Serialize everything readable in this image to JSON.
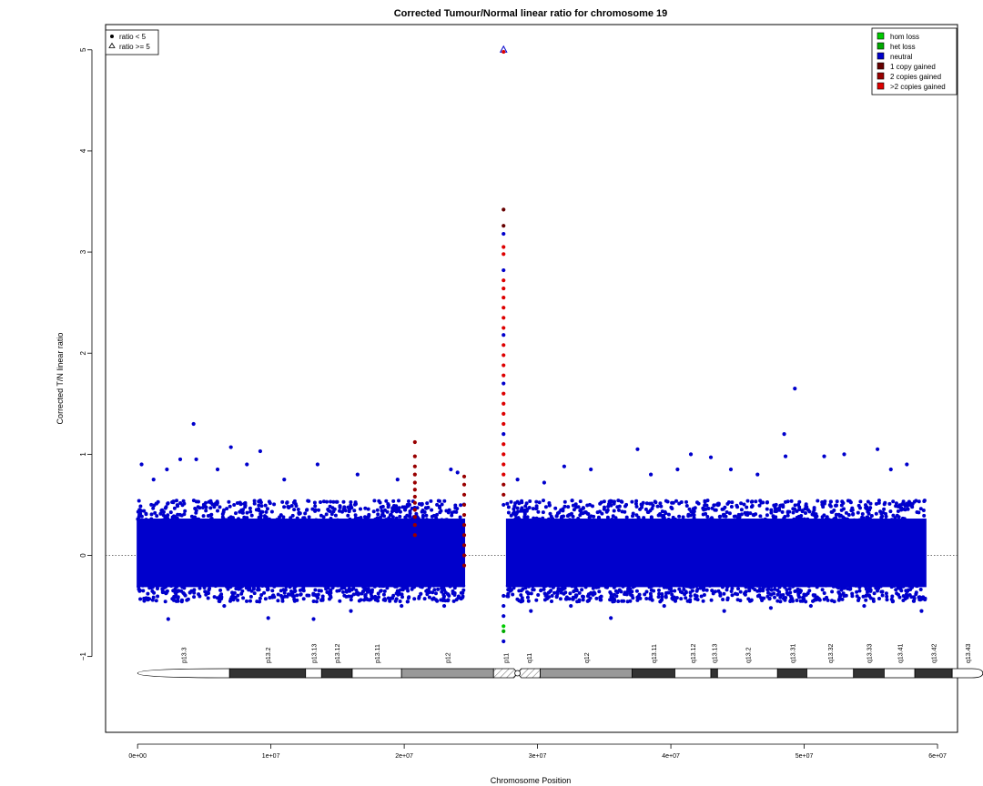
{
  "chart_data": {
    "type": "scatter",
    "title": "Corrected Tumour/Normal linear ratio for chromosome  19",
    "xlabel": "Chromosome Position",
    "ylabel": "Corrected T/N linear ratio",
    "xlim": [
      -2400000,
      61500000
    ],
    "ylim": [
      -1.75,
      5.25
    ],
    "x_ticks": [
      0,
      10000000,
      20000000,
      30000000,
      40000000,
      50000000,
      60000000
    ],
    "x_tick_labels": [
      "0e+00",
      "1e+07",
      "2e+07",
      "3e+07",
      "4e+07",
      "5e+07",
      "6e+07"
    ],
    "y_ticks": [
      -1,
      0,
      1,
      2,
      3,
      4,
      5
    ],
    "y_tick_labels": [
      "−1",
      "0",
      "1",
      "2",
      "3",
      "4",
      "5"
    ],
    "reference_line_y": 0,
    "grid": false,
    "legend_left": {
      "placement": "top-left",
      "entries": [
        {
          "label": "ratio < 5",
          "marker": "filled-circle"
        },
        {
          "label": "ratio >= 5",
          "marker": "open-triangle"
        }
      ]
    },
    "legend_right": {
      "placement": "top-right",
      "entries": [
        {
          "label": "hom loss",
          "color": "#00cc00"
        },
        {
          "label": "het loss",
          "color": "#00aa00"
        },
        {
          "label": "neutral",
          "color": "#0000cc"
        },
        {
          "label": "1 copy gained",
          "color": "#660000"
        },
        {
          "label": "2 copies gained",
          "color": "#990000"
        },
        {
          "label": ">2 copies gained",
          "color": "#dd0000"
        }
      ]
    },
    "dense_bands": [
      {
        "x_start": 0,
        "x_end": 24500000,
        "y_low": -0.35,
        "y_high": 0.4,
        "color": "#0000cc"
      },
      {
        "x_start": 27700000,
        "x_end": 59100000,
        "y_low": -0.35,
        "y_high": 0.4,
        "color": "#0000cc"
      }
    ],
    "outlier_points": [
      {
        "x": 300000,
        "y": 0.9,
        "c": "#0000cc"
      },
      {
        "x": 1200000,
        "y": 0.75,
        "c": "#0000cc"
      },
      {
        "x": 2200000,
        "y": 0.85,
        "c": "#0000cc"
      },
      {
        "x": 3200000,
        "y": 0.95,
        "c": "#0000cc"
      },
      {
        "x": 4200000,
        "y": 1.3,
        "c": "#0000cc"
      },
      {
        "x": 4400000,
        "y": 0.95,
        "c": "#0000cc"
      },
      {
        "x": 6000000,
        "y": 0.85,
        "c": "#0000cc"
      },
      {
        "x": 7000000,
        "y": 1.07,
        "c": "#0000cc"
      },
      {
        "x": 8200000,
        "y": 0.9,
        "c": "#0000cc"
      },
      {
        "x": 9200000,
        "y": 1.03,
        "c": "#0000cc"
      },
      {
        "x": 11000000,
        "y": 0.75,
        "c": "#0000cc"
      },
      {
        "x": 13500000,
        "y": 0.9,
        "c": "#0000cc"
      },
      {
        "x": 16500000,
        "y": 0.8,
        "c": "#0000cc"
      },
      {
        "x": 19500000,
        "y": 0.75,
        "c": "#0000cc"
      },
      {
        "x": 23500000,
        "y": 0.85,
        "c": "#0000cc"
      },
      {
        "x": 24000000,
        "y": 0.82,
        "c": "#0000cc"
      },
      {
        "x": 500000,
        "y": -0.45,
        "c": "#0000cc"
      },
      {
        "x": 2300000,
        "y": -0.63,
        "c": "#0000cc"
      },
      {
        "x": 6500000,
        "y": -0.5,
        "c": "#0000cc"
      },
      {
        "x": 9800000,
        "y": -0.62,
        "c": "#0000cc"
      },
      {
        "x": 13200000,
        "y": -0.63,
        "c": "#0000cc"
      },
      {
        "x": 16000000,
        "y": -0.55,
        "c": "#0000cc"
      },
      {
        "x": 19800000,
        "y": -0.5,
        "c": "#0000cc"
      },
      {
        "x": 23000000,
        "y": -0.5,
        "c": "#0000cc"
      },
      {
        "x": 28500000,
        "y": 0.75,
        "c": "#0000cc"
      },
      {
        "x": 30500000,
        "y": 0.72,
        "c": "#0000cc"
      },
      {
        "x": 32000000,
        "y": 0.88,
        "c": "#0000cc"
      },
      {
        "x": 34000000,
        "y": 0.85,
        "c": "#0000cc"
      },
      {
        "x": 37500000,
        "y": 1.05,
        "c": "#0000cc"
      },
      {
        "x": 38500000,
        "y": 0.8,
        "c": "#0000cc"
      },
      {
        "x": 40500000,
        "y": 0.85,
        "c": "#0000cc"
      },
      {
        "x": 41500000,
        "y": 1.0,
        "c": "#0000cc"
      },
      {
        "x": 43000000,
        "y": 0.97,
        "c": "#0000cc"
      },
      {
        "x": 44500000,
        "y": 0.85,
        "c": "#0000cc"
      },
      {
        "x": 46500000,
        "y": 0.8,
        "c": "#0000cc"
      },
      {
        "x": 48500000,
        "y": 1.2,
        "c": "#0000cc"
      },
      {
        "x": 48600000,
        "y": 0.98,
        "c": "#0000cc"
      },
      {
        "x": 49300000,
        "y": 1.65,
        "c": "#0000cc"
      },
      {
        "x": 51500000,
        "y": 0.98,
        "c": "#0000cc"
      },
      {
        "x": 53000000,
        "y": 1.0,
        "c": "#0000cc"
      },
      {
        "x": 55500000,
        "y": 1.05,
        "c": "#0000cc"
      },
      {
        "x": 56500000,
        "y": 0.85,
        "c": "#0000cc"
      },
      {
        "x": 57700000,
        "y": 0.9,
        "c": "#0000cc"
      },
      {
        "x": 29500000,
        "y": -0.55,
        "c": "#0000cc"
      },
      {
        "x": 32500000,
        "y": -0.5,
        "c": "#0000cc"
      },
      {
        "x": 35500000,
        "y": -0.62,
        "c": "#0000cc"
      },
      {
        "x": 39500000,
        "y": -0.5,
        "c": "#0000cc"
      },
      {
        "x": 44000000,
        "y": -0.55,
        "c": "#0000cc"
      },
      {
        "x": 47500000,
        "y": -0.52,
        "c": "#0000cc"
      },
      {
        "x": 50500000,
        "y": -0.5,
        "c": "#0000cc"
      },
      {
        "x": 54500000,
        "y": -0.5,
        "c": "#0000cc"
      },
      {
        "x": 58800000,
        "y": -0.55,
        "c": "#0000cc"
      },
      {
        "x": 20800000,
        "y": 1.12,
        "c": "#990000"
      },
      {
        "x": 20800000,
        "y": 0.98,
        "c": "#990000"
      },
      {
        "x": 20800000,
        "y": 0.88,
        "c": "#990000"
      },
      {
        "x": 20800000,
        "y": 0.8,
        "c": "#990000"
      },
      {
        "x": 20800000,
        "y": 0.72,
        "c": "#990000"
      },
      {
        "x": 20800000,
        "y": 0.65,
        "c": "#990000"
      },
      {
        "x": 20800000,
        "y": 0.58,
        "c": "#990000"
      },
      {
        "x": 20800000,
        "y": 0.52,
        "c": "#990000"
      },
      {
        "x": 20800000,
        "y": 0.45,
        "c": "#990000"
      },
      {
        "x": 20800000,
        "y": 0.38,
        "c": "#990000"
      },
      {
        "x": 20800000,
        "y": 0.3,
        "c": "#990000"
      },
      {
        "x": 20800000,
        "y": 0.2,
        "c": "#990000"
      },
      {
        "x": 24500000,
        "y": 0.78,
        "c": "#990000"
      },
      {
        "x": 24500000,
        "y": 0.7,
        "c": "#990000"
      },
      {
        "x": 24500000,
        "y": 0.6,
        "c": "#990000"
      },
      {
        "x": 24500000,
        "y": 0.5,
        "c": "#990000"
      },
      {
        "x": 24500000,
        "y": 0.4,
        "c": "#990000"
      },
      {
        "x": 24500000,
        "y": 0.3,
        "c": "#990000"
      },
      {
        "x": 24500000,
        "y": 0.2,
        "c": "#990000"
      },
      {
        "x": 24500000,
        "y": 0.1,
        "c": "#990000"
      },
      {
        "x": 24500000,
        "y": 0.0,
        "c": "#990000"
      },
      {
        "x": 24500000,
        "y": -0.1,
        "c": "#990000"
      },
      {
        "x": 27450000,
        "y": 3.42,
        "c": "#660000"
      },
      {
        "x": 27450000,
        "y": 3.26,
        "c": "#660000"
      },
      {
        "x": 27450000,
        "y": 3.18,
        "c": "#0000cc"
      },
      {
        "x": 27450000,
        "y": 3.05,
        "c": "#dd0000"
      },
      {
        "x": 27450000,
        "y": 2.98,
        "c": "#dd0000"
      },
      {
        "x": 27450000,
        "y": 2.82,
        "c": "#0000cc"
      },
      {
        "x": 27450000,
        "y": 2.72,
        "c": "#dd0000"
      },
      {
        "x": 27450000,
        "y": 2.64,
        "c": "#dd0000"
      },
      {
        "x": 27450000,
        "y": 2.55,
        "c": "#dd0000"
      },
      {
        "x": 27450000,
        "y": 2.45,
        "c": "#dd0000"
      },
      {
        "x": 27450000,
        "y": 2.35,
        "c": "#dd0000"
      },
      {
        "x": 27450000,
        "y": 2.25,
        "c": "#dd0000"
      },
      {
        "x": 27450000,
        "y": 2.18,
        "c": "#0000cc"
      },
      {
        "x": 27450000,
        "y": 2.08,
        "c": "#dd0000"
      },
      {
        "x": 27450000,
        "y": 1.98,
        "c": "#dd0000"
      },
      {
        "x": 27450000,
        "y": 1.88,
        "c": "#dd0000"
      },
      {
        "x": 27450000,
        "y": 1.78,
        "c": "#dd0000"
      },
      {
        "x": 27450000,
        "y": 1.7,
        "c": "#0000cc"
      },
      {
        "x": 27450000,
        "y": 1.6,
        "c": "#dd0000"
      },
      {
        "x": 27450000,
        "y": 1.5,
        "c": "#dd0000"
      },
      {
        "x": 27450000,
        "y": 1.4,
        "c": "#dd0000"
      },
      {
        "x": 27450000,
        "y": 1.3,
        "c": "#dd0000"
      },
      {
        "x": 27450000,
        "y": 1.2,
        "c": "#0000cc"
      },
      {
        "x": 27450000,
        "y": 1.1,
        "c": "#dd0000"
      },
      {
        "x": 27450000,
        "y": 1.0,
        "c": "#dd0000"
      },
      {
        "x": 27450000,
        "y": 0.9,
        "c": "#dd0000"
      },
      {
        "x": 27450000,
        "y": 0.8,
        "c": "#dd0000"
      },
      {
        "x": 27450000,
        "y": 0.7,
        "c": "#990000"
      },
      {
        "x": 27450000,
        "y": 0.6,
        "c": "#990000"
      },
      {
        "x": 27450000,
        "y": 0.5,
        "c": "#0000cc"
      },
      {
        "x": 27450000,
        "y": -0.4,
        "c": "#0000cc"
      },
      {
        "x": 27450000,
        "y": -0.5,
        "c": "#0000cc"
      },
      {
        "x": 27450000,
        "y": -0.6,
        "c": "#0000cc"
      },
      {
        "x": 27450000,
        "y": -0.7,
        "c": "#00cc00"
      },
      {
        "x": 27450000,
        "y": -0.75,
        "c": "#00aa00"
      },
      {
        "x": 27450000,
        "y": -0.85,
        "c": "#0000cc"
      }
    ],
    "high_points": [
      {
        "x": 27450000,
        "y": 5.0,
        "c": "#0000cc",
        "marker": "triangle"
      },
      {
        "x": 27450000,
        "y": 4.98,
        "c": "#dd0000",
        "marker": "circle"
      }
    ],
    "ideogram": {
      "bands": [
        {
          "name": "p13.3",
          "start": 0,
          "end": 6900000,
          "fill": "white"
        },
        {
          "name": "p13.2",
          "start": 6900000,
          "end": 12600000,
          "fill": "#333333"
        },
        {
          "name": "p13.13",
          "start": 12600000,
          "end": 13800000,
          "fill": "white"
        },
        {
          "name": "p13.12",
          "start": 13800000,
          "end": 16100000,
          "fill": "#333333"
        },
        {
          "name": "p13.11",
          "start": 16100000,
          "end": 19800000,
          "fill": "white"
        },
        {
          "name": "p12",
          "start": 19800000,
          "end": 26700000,
          "fill": "#999999"
        },
        {
          "name": "p11",
          "start": 26700000,
          "end": 28500000,
          "fill": "hatch"
        },
        {
          "name": "q11",
          "start": 28500000,
          "end": 30200000,
          "fill": "hatch"
        },
        {
          "name": "q12",
          "start": 30200000,
          "end": 37100000,
          "fill": "#999999"
        },
        {
          "name": "q13.11",
          "start": 37100000,
          "end": 40300000,
          "fill": "#333333"
        },
        {
          "name": "q13.12",
          "start": 40300000,
          "end": 43000000,
          "fill": "white"
        },
        {
          "name": "q13.13",
          "start": 43000000,
          "end": 43500000,
          "fill": "#333333"
        },
        {
          "name": "q13.2",
          "start": 43500000,
          "end": 48000000,
          "fill": "white"
        },
        {
          "name": "q13.31",
          "start": 48000000,
          "end": 50200000,
          "fill": "#333333"
        },
        {
          "name": "q13.32",
          "start": 50200000,
          "end": 53700000,
          "fill": "white"
        },
        {
          "name": "q13.33",
          "start": 53700000,
          "end": 56000000,
          "fill": "#333333"
        },
        {
          "name": "q13.41",
          "start": 56000000,
          "end": 58300000,
          "fill": "white"
        },
        {
          "name": "q13.42",
          "start": 58300000,
          "end": 61100000,
          "fill": "#333333"
        },
        {
          "name": "q13.43",
          "start": 61100000,
          "end": 63400000,
          "fill": "white"
        }
      ]
    }
  }
}
